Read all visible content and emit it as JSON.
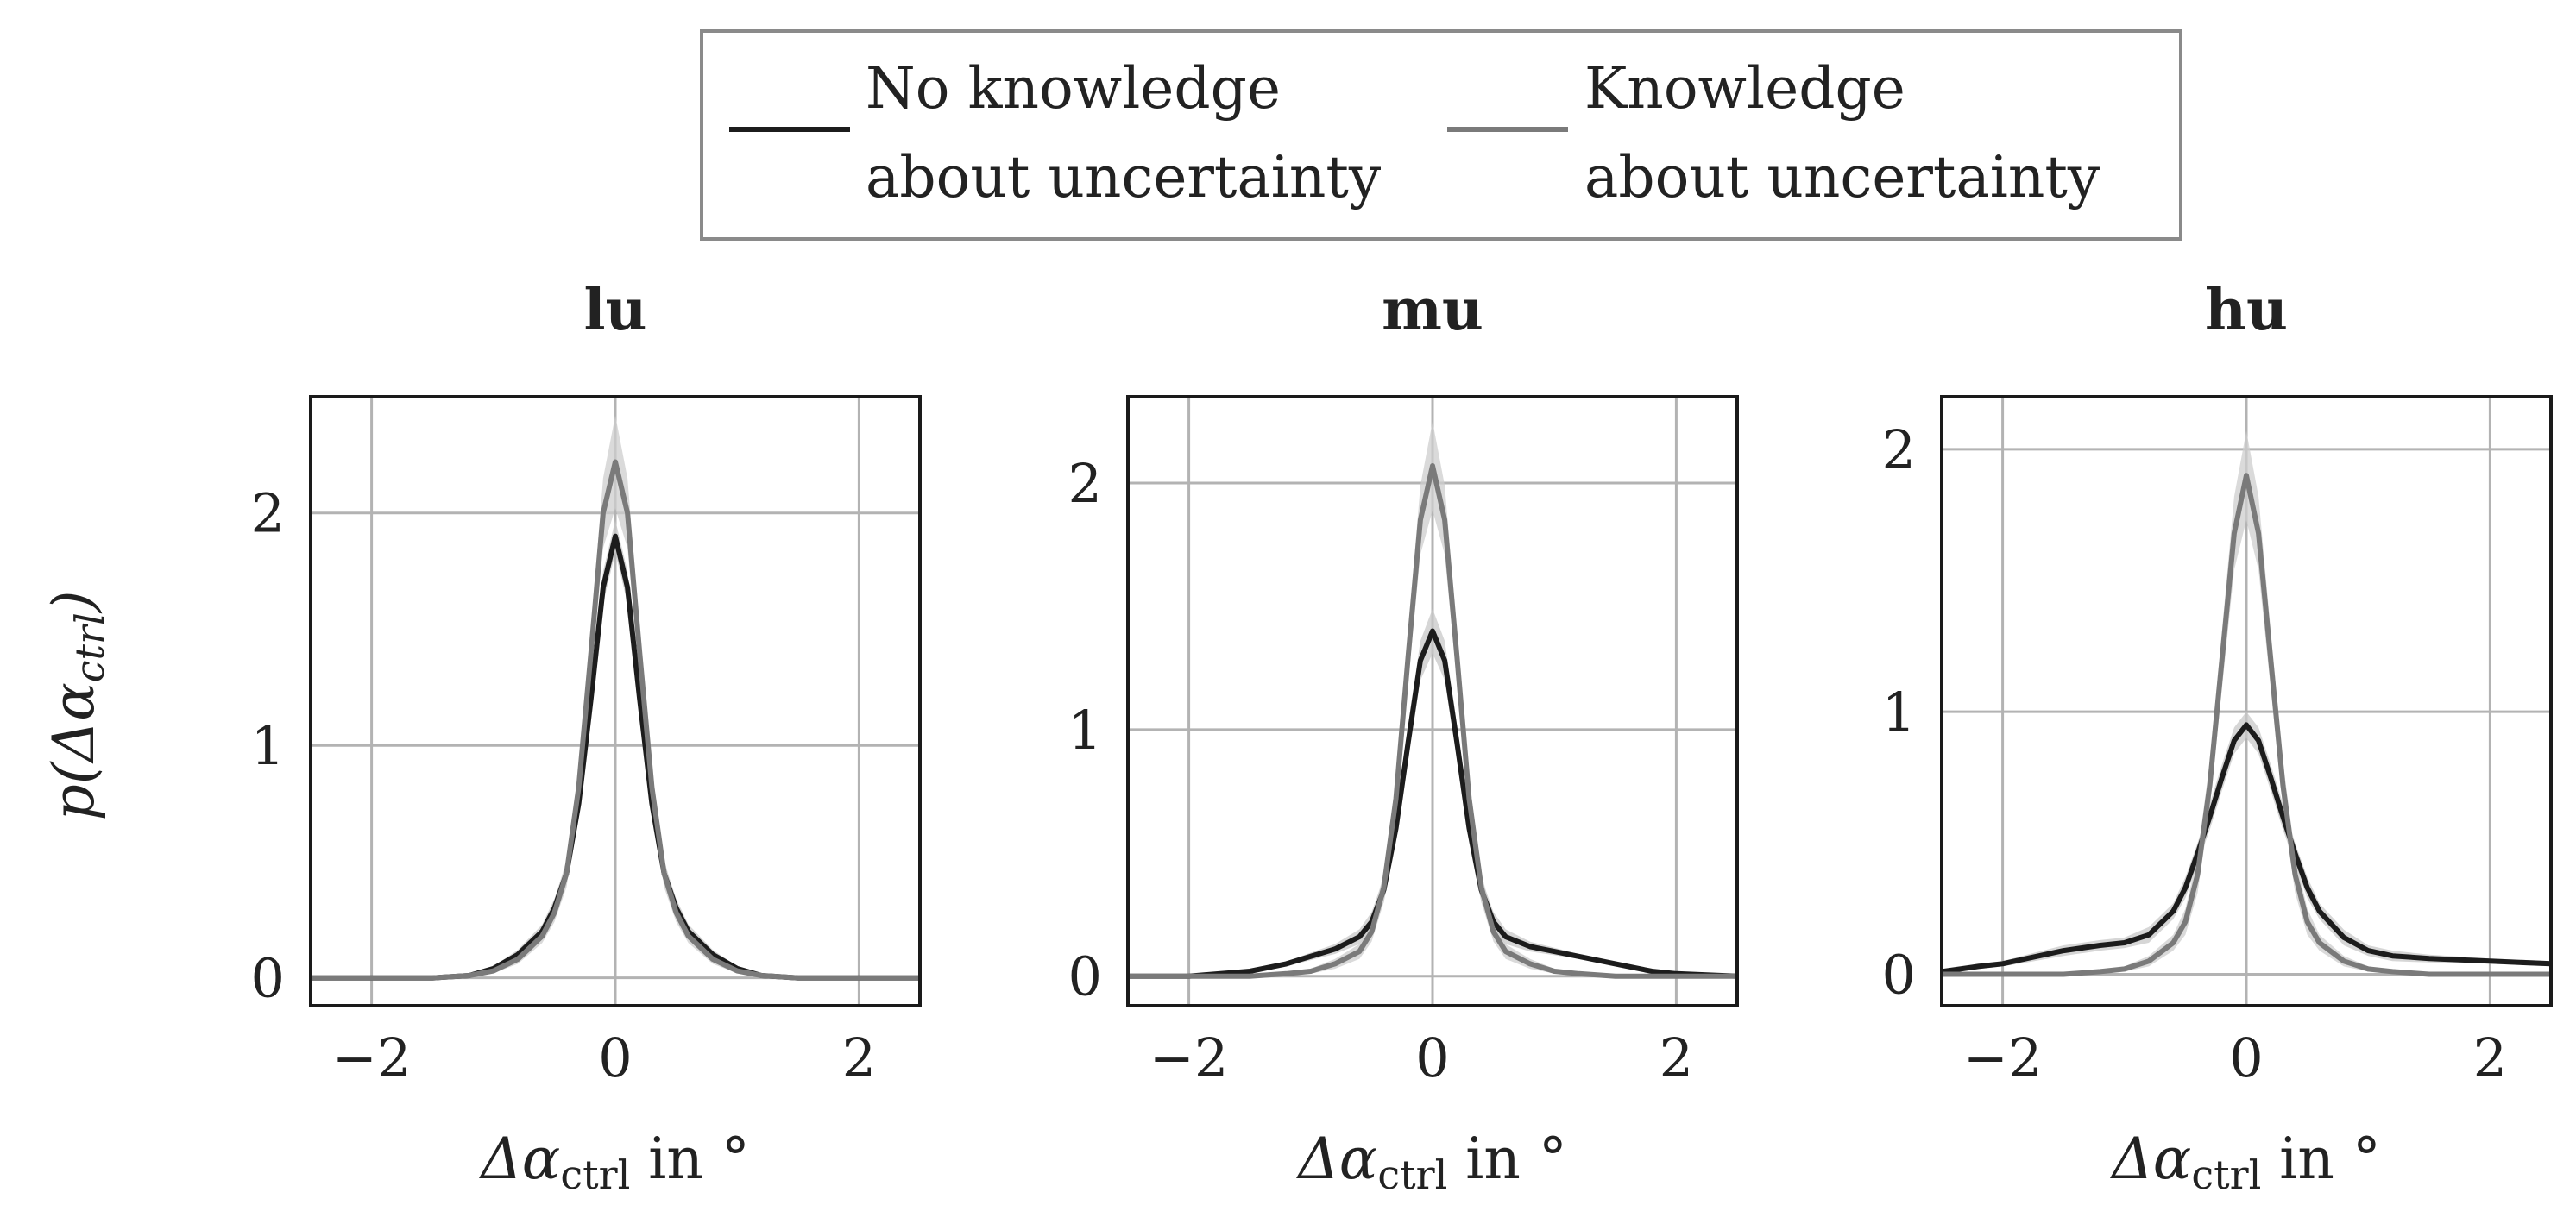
{
  "legend": {
    "items": [
      {
        "label_line1": "No knowledge",
        "label_line2": "about uncertainty",
        "color": "#1c1c1c"
      },
      {
        "label_line1": "Knowledge",
        "label_line2": "about uncertainty",
        "color": "#7a7a7a"
      }
    ]
  },
  "ylabel": {
    "main": "p(Δα",
    "sub": "ctrl",
    "close": ")"
  },
  "xlabel": {
    "main": "Δα",
    "sub": "ctrl",
    "tail": " in °"
  },
  "chart_data": [
    {
      "type": "line",
      "title": "lu",
      "xlim": [
        -2.5,
        2.5
      ],
      "ylim": [
        -0.12,
        2.5
      ],
      "xticks": [
        -2,
        0,
        2
      ],
      "xtick_labels": [
        "−2",
        "0",
        "2"
      ],
      "yticks": [
        0,
        1,
        2
      ],
      "ytick_labels": [
        "0",
        "1",
        "2"
      ],
      "grid": true,
      "series": [
        {
          "name": "No knowledge about uncertainty",
          "color": "#1c1c1c",
          "band_color": "#c8c8c8",
          "x": [
            -2.5,
            -2.0,
            -1.5,
            -1.2,
            -1.0,
            -0.8,
            -0.6,
            -0.5,
            -0.4,
            -0.3,
            -0.2,
            -0.1,
            0.0,
            0.1,
            0.2,
            0.3,
            0.4,
            0.5,
            0.6,
            0.8,
            1.0,
            1.2,
            1.5,
            2.0,
            2.5
          ],
          "y": [
            0,
            0,
            0,
            0.01,
            0.04,
            0.1,
            0.2,
            0.3,
            0.45,
            0.75,
            1.2,
            1.68,
            1.9,
            1.68,
            1.2,
            0.75,
            0.45,
            0.3,
            0.2,
            0.1,
            0.04,
            0.01,
            0,
            0,
            0
          ],
          "band": [
            0,
            0,
            0,
            0.005,
            0.01,
            0.02,
            0.03,
            0.04,
            0.05,
            0.06,
            0.07,
            0.07,
            0.07,
            0.07,
            0.07,
            0.06,
            0.05,
            0.04,
            0.03,
            0.02,
            0.01,
            0.005,
            0,
            0,
            0
          ]
        },
        {
          "name": "Knowledge about uncertainty",
          "color": "#7a7a7a",
          "band_color": "#cdcdcd",
          "x": [
            -2.5,
            -2.0,
            -1.5,
            -1.2,
            -1.0,
            -0.8,
            -0.6,
            -0.5,
            -0.4,
            -0.3,
            -0.2,
            -0.1,
            0.0,
            0.1,
            0.2,
            0.3,
            0.4,
            0.5,
            0.6,
            0.8,
            1.0,
            1.2,
            1.5,
            2.0,
            2.5
          ],
          "y": [
            0,
            0,
            0,
            0.01,
            0.03,
            0.08,
            0.18,
            0.28,
            0.45,
            0.82,
            1.4,
            2.0,
            2.22,
            2.0,
            1.4,
            0.82,
            0.45,
            0.28,
            0.18,
            0.08,
            0.03,
            0.01,
            0,
            0,
            0
          ],
          "band": [
            0,
            0,
            0,
            0.005,
            0.01,
            0.02,
            0.03,
            0.04,
            0.06,
            0.08,
            0.1,
            0.15,
            0.2,
            0.15,
            0.1,
            0.08,
            0.06,
            0.04,
            0.03,
            0.02,
            0.01,
            0.005,
            0,
            0,
            0
          ]
        }
      ]
    },
    {
      "type": "line",
      "title": "mu",
      "xlim": [
        -2.5,
        2.5
      ],
      "ylim": [
        -0.12,
        2.35
      ],
      "xticks": [
        -2,
        0,
        2
      ],
      "xtick_labels": [
        "−2",
        "0",
        "2"
      ],
      "yticks": [
        0,
        1,
        2
      ],
      "ytick_labels": [
        "0",
        "1",
        "2"
      ],
      "grid": true,
      "series": [
        {
          "name": "No knowledge about uncertainty",
          "color": "#1c1c1c",
          "band_color": "#c8c8c8",
          "x": [
            -2.5,
            -2.0,
            -1.5,
            -1.2,
            -1.0,
            -0.8,
            -0.6,
            -0.5,
            -0.4,
            -0.3,
            -0.2,
            -0.1,
            0.0,
            0.1,
            0.2,
            0.3,
            0.4,
            0.5,
            0.6,
            0.8,
            1.0,
            1.2,
            1.5,
            1.8,
            2.0,
            2.5
          ],
          "y": [
            0,
            0,
            0.02,
            0.05,
            0.08,
            0.11,
            0.16,
            0.22,
            0.35,
            0.6,
            0.95,
            1.28,
            1.4,
            1.28,
            0.95,
            0.6,
            0.35,
            0.22,
            0.16,
            0.12,
            0.1,
            0.08,
            0.05,
            0.02,
            0.01,
            0
          ],
          "band": [
            0,
            0,
            0.01,
            0.01,
            0.015,
            0.02,
            0.03,
            0.04,
            0.05,
            0.06,
            0.07,
            0.08,
            0.09,
            0.08,
            0.07,
            0.06,
            0.05,
            0.04,
            0.03,
            0.02,
            0.015,
            0.01,
            0.01,
            0.005,
            0,
            0
          ]
        },
        {
          "name": "Knowledge about uncertainty",
          "color": "#7a7a7a",
          "band_color": "#cdcdcd",
          "x": [
            -2.5,
            -2.0,
            -1.5,
            -1.2,
            -1.0,
            -0.8,
            -0.6,
            -0.5,
            -0.4,
            -0.3,
            -0.2,
            -0.1,
            0.0,
            0.1,
            0.2,
            0.3,
            0.4,
            0.5,
            0.6,
            0.8,
            1.0,
            1.2,
            1.5,
            2.0,
            2.5
          ],
          "y": [
            0,
            0,
            0,
            0.01,
            0.02,
            0.05,
            0.1,
            0.18,
            0.36,
            0.72,
            1.3,
            1.85,
            2.07,
            1.85,
            1.3,
            0.72,
            0.36,
            0.18,
            0.1,
            0.05,
            0.02,
            0.01,
            0,
            0,
            0
          ],
          "band": [
            0,
            0,
            0,
            0.005,
            0.01,
            0.02,
            0.03,
            0.04,
            0.06,
            0.08,
            0.1,
            0.14,
            0.18,
            0.14,
            0.1,
            0.08,
            0.06,
            0.04,
            0.03,
            0.02,
            0.01,
            0.005,
            0,
            0,
            0
          ]
        }
      ]
    },
    {
      "type": "line",
      "title": "hu",
      "xlim": [
        -2.5,
        2.5
      ],
      "ylim": [
        -0.12,
        2.2
      ],
      "xticks": [
        -2,
        0,
        2
      ],
      "xtick_labels": [
        "−2",
        "0",
        "2"
      ],
      "yticks": [
        0,
        1,
        2
      ],
      "ytick_labels": [
        "0",
        "1",
        "2"
      ],
      "grid": true,
      "series": [
        {
          "name": "No knowledge about uncertainty",
          "color": "#1c1c1c",
          "band_color": "#c8c8c8",
          "x": [
            -2.5,
            -2.2,
            -2.0,
            -1.8,
            -1.5,
            -1.2,
            -1.0,
            -0.8,
            -0.6,
            -0.5,
            -0.4,
            -0.3,
            -0.2,
            -0.1,
            0.0,
            0.1,
            0.2,
            0.3,
            0.4,
            0.5,
            0.6,
            0.8,
            1.0,
            1.2,
            1.5,
            2.0,
            2.5
          ],
          "y": [
            0.01,
            0.03,
            0.04,
            0.06,
            0.09,
            0.11,
            0.12,
            0.15,
            0.24,
            0.33,
            0.46,
            0.6,
            0.75,
            0.89,
            0.95,
            0.89,
            0.75,
            0.6,
            0.46,
            0.33,
            0.24,
            0.14,
            0.09,
            0.07,
            0.06,
            0.05,
            0.04
          ],
          "band": [
            0.005,
            0.01,
            0.01,
            0.015,
            0.02,
            0.02,
            0.02,
            0.03,
            0.03,
            0.04,
            0.04,
            0.05,
            0.05,
            0.05,
            0.05,
            0.05,
            0.05,
            0.05,
            0.04,
            0.04,
            0.03,
            0.03,
            0.02,
            0.02,
            0.015,
            0.01,
            0.01
          ]
        },
        {
          "name": "Knowledge about uncertainty",
          "color": "#7a7a7a",
          "band_color": "#cdcdcd",
          "x": [
            -2.5,
            -2.0,
            -1.5,
            -1.2,
            -1.0,
            -0.8,
            -0.6,
            -0.5,
            -0.4,
            -0.3,
            -0.2,
            -0.1,
            0.0,
            0.1,
            0.2,
            0.3,
            0.4,
            0.5,
            0.6,
            0.8,
            1.0,
            1.2,
            1.5,
            2.0,
            2.5
          ],
          "y": [
            0,
            0,
            0,
            0.01,
            0.02,
            0.05,
            0.12,
            0.2,
            0.38,
            0.72,
            1.2,
            1.68,
            1.9,
            1.68,
            1.2,
            0.72,
            0.38,
            0.2,
            0.12,
            0.05,
            0.02,
            0.01,
            0,
            0,
            0
          ],
          "band": [
            0,
            0,
            0,
            0.005,
            0.01,
            0.02,
            0.03,
            0.05,
            0.07,
            0.09,
            0.11,
            0.14,
            0.17,
            0.14,
            0.11,
            0.09,
            0.07,
            0.05,
            0.03,
            0.02,
            0.01,
            0.005,
            0,
            0,
            0
          ]
        }
      ]
    }
  ]
}
